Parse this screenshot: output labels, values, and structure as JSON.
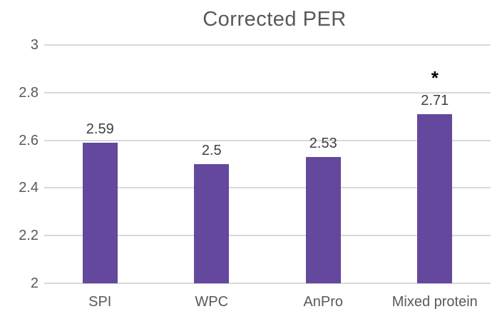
{
  "chart_data": {
    "type": "bar",
    "title": "Corrected PER",
    "categories": [
      "SPI",
      "WPC",
      "AnPro",
      "Mixed protein"
    ],
    "values": [
      2.59,
      2.5,
      2.53,
      2.71
    ],
    "value_labels": [
      "2.59",
      "2.5",
      "2.53",
      "2.71"
    ],
    "annotations": [
      {
        "category_index": 3,
        "text": "*"
      }
    ],
    "xlabel": "",
    "ylabel": "",
    "ylim": [
      2,
      3
    ],
    "yticks": [
      2,
      2.2,
      2.4,
      2.6,
      2.8,
      3
    ],
    "ytick_labels": [
      "2",
      "2.2",
      "2.4",
      "2.6",
      "2.8",
      "3"
    ],
    "grid": true,
    "legend": false,
    "colors": {
      "bar": "#64489E",
      "gridline": "#D9D9D9",
      "title": "#595959",
      "axis_label": "#595959",
      "value_label": "#404040",
      "annotation": "#000000",
      "background": "#FFFFFF"
    }
  }
}
